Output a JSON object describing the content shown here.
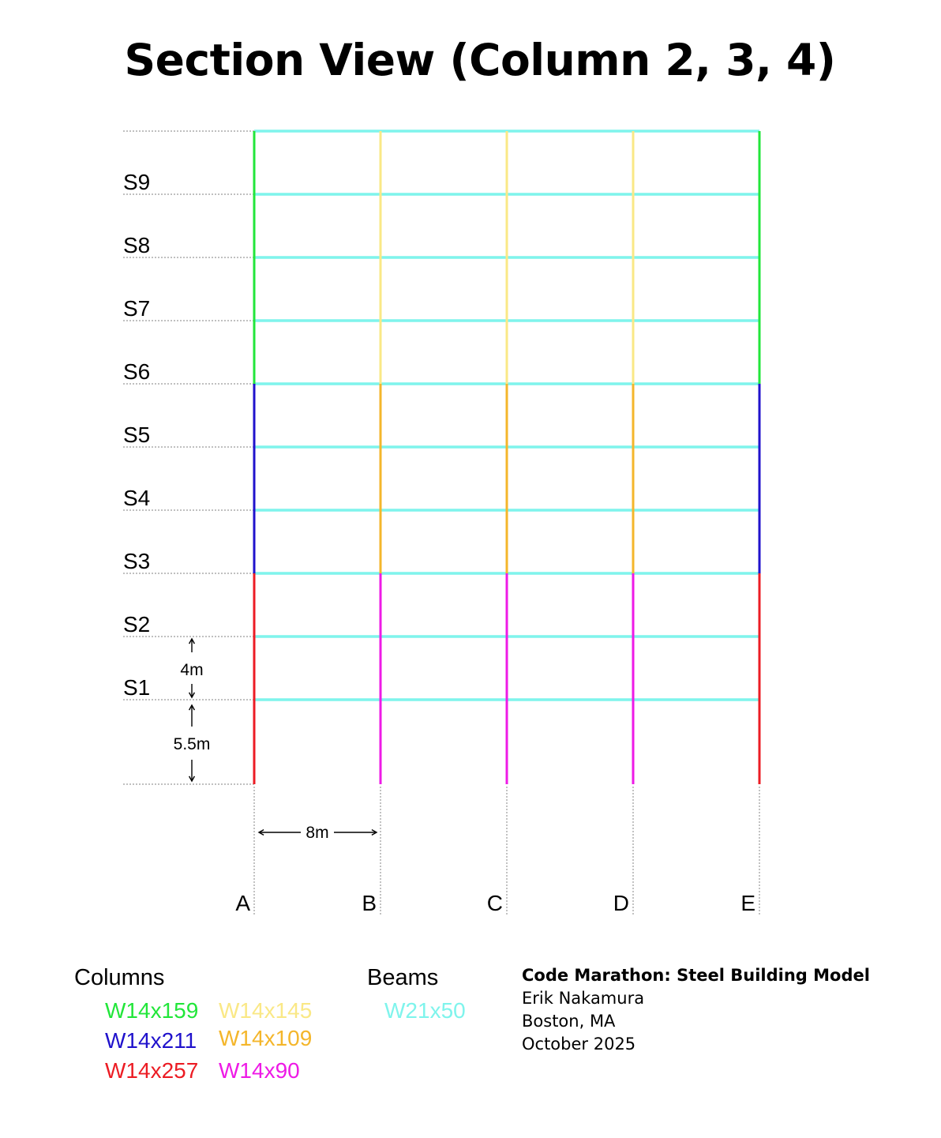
{
  "title": "Section View (Column 2, 3, 4)",
  "structure": {
    "grid_labels": [
      "A",
      "B",
      "C",
      "D",
      "E"
    ],
    "storey_labels": [
      "S1",
      "S2",
      "S3",
      "S4",
      "S5",
      "S6",
      "S7",
      "S8",
      "S9"
    ],
    "levels": 10,
    "column_segments": [
      {
        "grid": "A",
        "section": "W14x257",
        "from_level": 0,
        "to_level": 3
      },
      {
        "grid": "A",
        "section": "W14x211",
        "from_level": 3,
        "to_level": 6
      },
      {
        "grid": "A",
        "section": "W14x159",
        "from_level": 6,
        "to_level": 10
      },
      {
        "grid": "B",
        "section": "W14x90",
        "from_level": 0,
        "to_level": 3
      },
      {
        "grid": "B",
        "section": "W14x109",
        "from_level": 3,
        "to_level": 6
      },
      {
        "grid": "B",
        "section": "W14x145",
        "from_level": 6,
        "to_level": 10
      },
      {
        "grid": "C",
        "section": "W14x90",
        "from_level": 0,
        "to_level": 3
      },
      {
        "grid": "C",
        "section": "W14x109",
        "from_level": 3,
        "to_level": 6
      },
      {
        "grid": "C",
        "section": "W14x145",
        "from_level": 6,
        "to_level": 10
      },
      {
        "grid": "D",
        "section": "W14x90",
        "from_level": 0,
        "to_level": 3
      },
      {
        "grid": "D",
        "section": "W14x109",
        "from_level": 3,
        "to_level": 6
      },
      {
        "grid": "D",
        "section": "W14x145",
        "from_level": 6,
        "to_level": 10
      },
      {
        "grid": "E",
        "section": "W14x257",
        "from_level": 0,
        "to_level": 3
      },
      {
        "grid": "E",
        "section": "W14x211",
        "from_level": 3,
        "to_level": 6
      },
      {
        "grid": "E",
        "section": "W14x159",
        "from_level": 6,
        "to_level": 10
      }
    ],
    "beam_section": "W21x50"
  },
  "dimensions": {
    "ground_storey": "5.5m",
    "typical_storey": "4m",
    "bay_width": "8m"
  },
  "legend": {
    "columns_heading": "Columns",
    "beams_heading": "Beams",
    "columns": [
      {
        "label": "W14x159",
        "color": "#22e63a"
      },
      {
        "label": "W14x145",
        "color": "#fae886"
      },
      {
        "label": "W14x211",
        "color": "#2012cc"
      },
      {
        "label": "W14x109",
        "color": "#f4b62b"
      },
      {
        "label": "W14x257",
        "color": "#ec1c24"
      },
      {
        "label": "W14x90",
        "color": "#ee1ae6"
      }
    ],
    "beams": [
      {
        "label": "W21x50",
        "color": "#7ff4ec"
      }
    ]
  },
  "credits": {
    "project": "Code Marathon: Steel Building Model",
    "author": "Erik Nakamura",
    "location": "Boston, MA",
    "date": "October 2025"
  }
}
